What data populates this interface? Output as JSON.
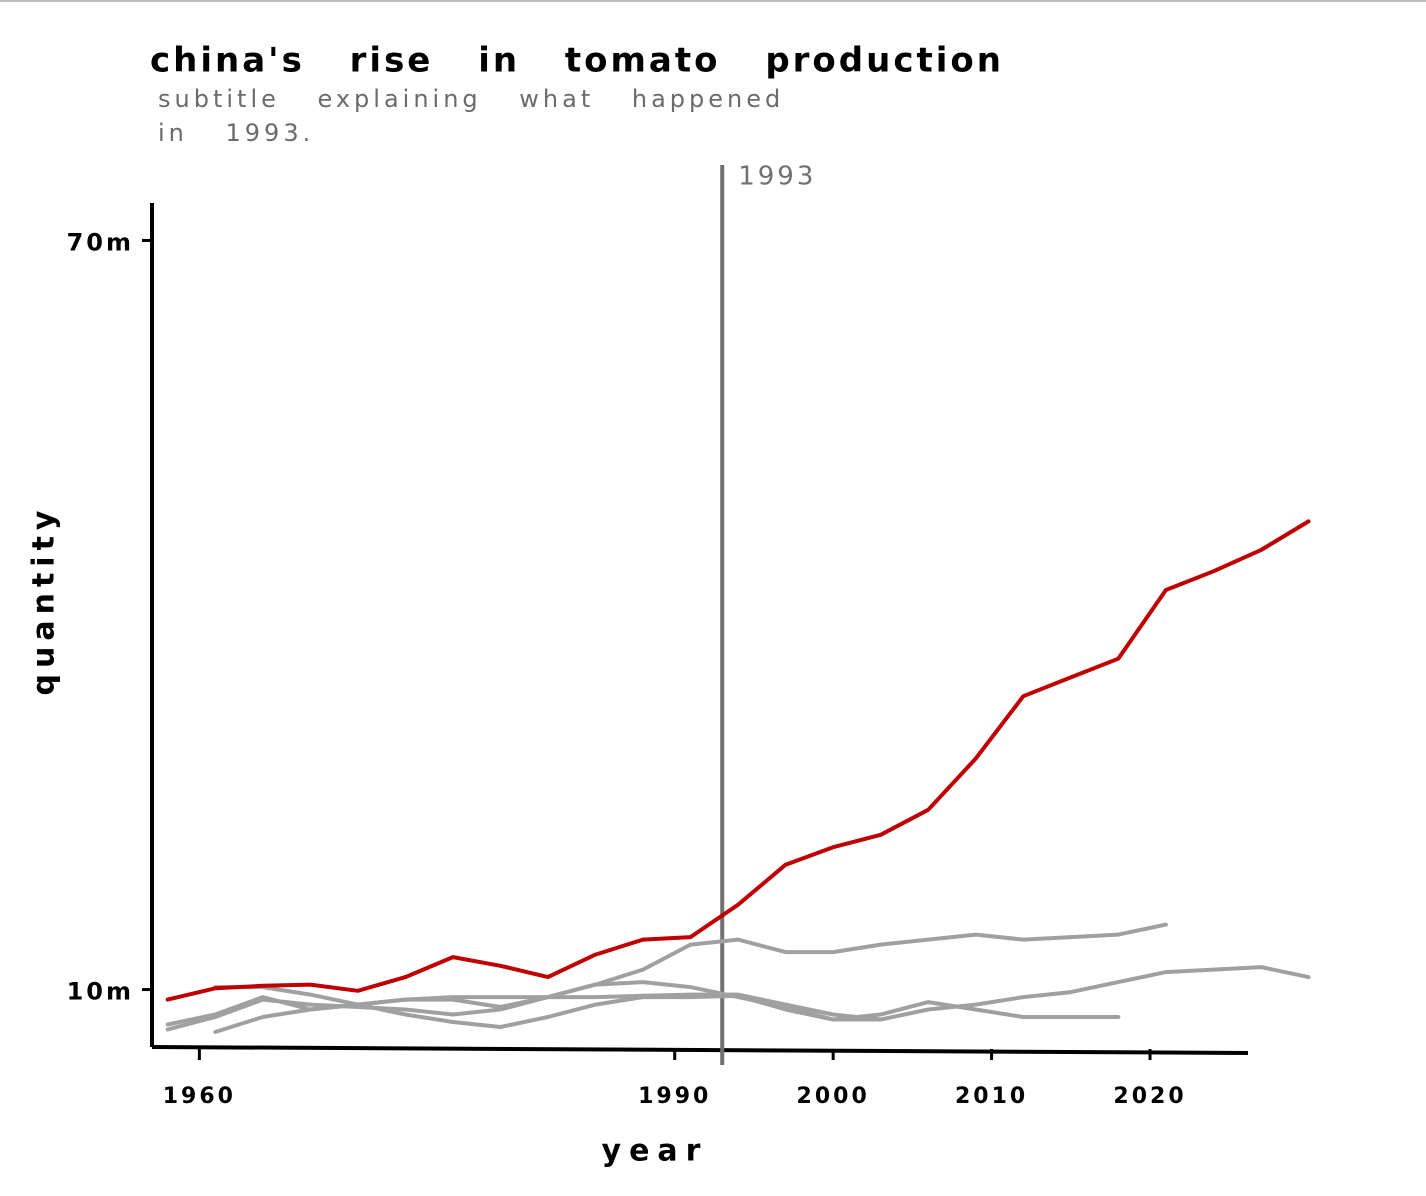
{
  "chart_data": {
    "type": "line",
    "title": "china's rise in tomato production",
    "subtitle": "subtitle explaining what happened in 1993.",
    "x_label": "year",
    "y_label": "quantity",
    "x": [
      1958,
      1961,
      1964,
      1967,
      1970,
      1973,
      1976,
      1979,
      1982,
      1985,
      1988,
      1991,
      1994,
      1997,
      2000,
      2003,
      2006,
      2009,
      2012,
      2015,
      2018,
      2021,
      2024,
      2027,
      2030
    ],
    "xlim": [
      1956,
      2033
    ],
    "xticks": [
      1960,
      1990,
      2000,
      2010,
      2020
    ],
    "ylim": [
      5.4,
      73
    ],
    "yticks": [
      {
        "value": 10,
        "label": "10m"
      },
      {
        "value": 70,
        "label": "70m"
      }
    ],
    "annotations": [
      {
        "x": 1993,
        "label": "1993",
        "color": "#707070"
      }
    ],
    "series": [
      {
        "color": "#a0a0a0",
        "values": [
          6.8,
          7.8,
          9.2,
          8.8,
          8.6,
          8.4,
          8.0,
          8.4,
          9.4,
          10.4,
          11.6,
          13.6,
          14.0,
          13.0,
          13.0,
          13.6,
          14.0,
          14.4,
          14.0,
          14.2,
          14.4,
          15.2,
          null,
          null,
          null
        ]
      },
      {
        "color": "#a0a0a0",
        "values": [
          null,
          6.6,
          7.8,
          8.4,
          8.8,
          9.2,
          9.4,
          9.4,
          9.4,
          9.4,
          9.5,
          9.6,
          9.6,
          8.8,
          8.0,
          7.6,
          8.4,
          8.8,
          9.4,
          9.8,
          10.6,
          11.4,
          11.6,
          11.8,
          11.0
        ]
      },
      {
        "color": "#a0a0a0",
        "values": [
          null,
          10.2,
          10.2,
          9.6,
          8.8,
          8.0,
          7.4,
          7.0,
          7.8,
          8.8,
          9.4,
          9.4,
          9.5,
          8.4,
          7.6,
          8.0,
          9.0,
          8.4,
          7.8,
          7.8,
          7.8,
          null,
          null,
          null,
          null
        ]
      },
      {
        "color": "#a0a0a0",
        "values": [
          7.2,
          8.0,
          9.4,
          8.4,
          8.8,
          9.2,
          9.2,
          8.6,
          9.4,
          10.4,
          10.6,
          10.2,
          9.4,
          8.6,
          7.6,
          7.6,
          null,
          null,
          null,
          null,
          null,
          null,
          null,
          null,
          null
        ]
      },
      {
        "color": "#c00000",
        "values": [
          9.2,
          10.1,
          10.3,
          10.4,
          9.9,
          11.0,
          12.6,
          11.9,
          11.0,
          12.8,
          14.0,
          14.2,
          16.8,
          20.0,
          21.4,
          22.4,
          24.4,
          28.5,
          33.5,
          35.0,
          36.5,
          42.0,
          43.5,
          45.2,
          47.5
        ]
      }
    ]
  }
}
